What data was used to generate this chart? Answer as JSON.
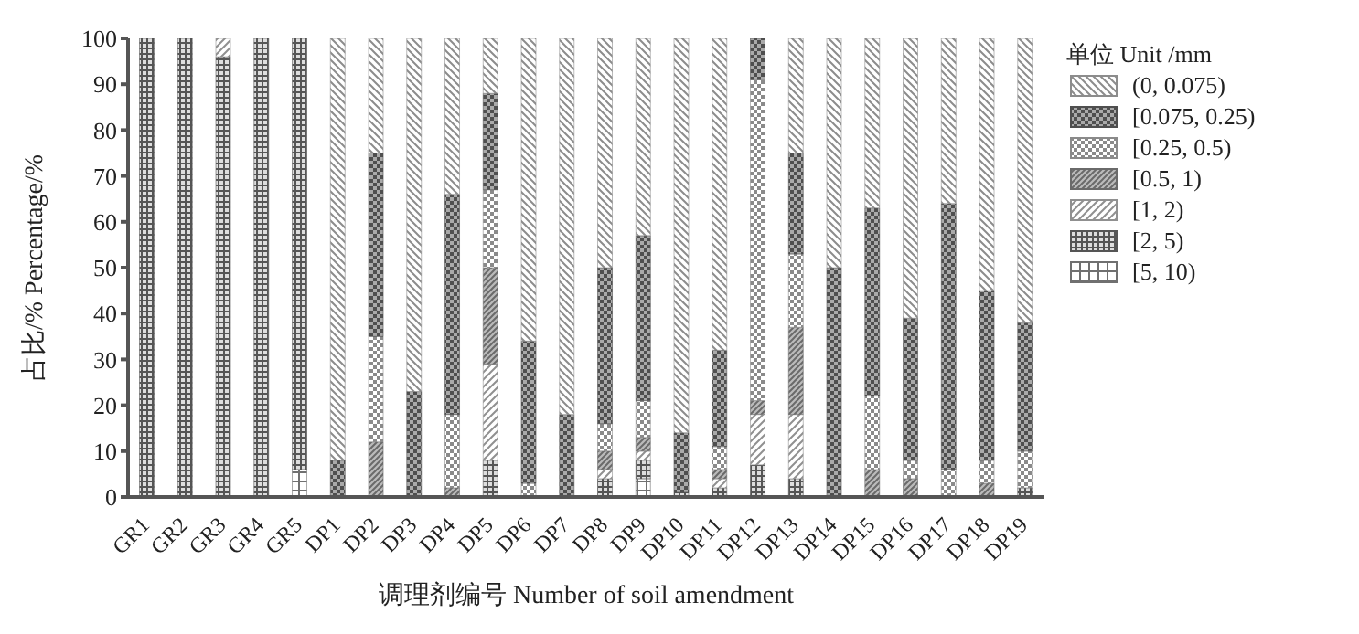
{
  "chart_data": {
    "type": "bar",
    "stacked": true,
    "xlabel": "调理剂编号 Number of soil amendment",
    "ylabel": "占比/% Percentage/%",
    "legend_title": "单位 Unit /mm",
    "legend": "top right",
    "grid": false,
    "categories": [
      "GR1",
      "GR2",
      "GR3",
      "GR4",
      "GR5",
      "DP1",
      "DP2",
      "DP3",
      "DP4",
      "DP5",
      "DP6",
      "DP7",
      "DP8",
      "DP9",
      "DP10",
      "DP11",
      "DP12",
      "DP13",
      "DP14",
      "DP15",
      "DP16",
      "DP17",
      "DP18",
      "DP19"
    ],
    "ylim": [
      0,
      100
    ],
    "yticks": [
      0,
      10,
      20,
      30,
      40,
      50,
      60,
      70,
      80,
      90,
      100
    ],
    "series": [
      {
        "name": "[5, 10)",
        "color": "#707070",
        "values": [
          0,
          0,
          0,
          0,
          6,
          0,
          0,
          0,
          0,
          0,
          0,
          0,
          0,
          4,
          0,
          0,
          0,
          0,
          0,
          0,
          0,
          0,
          0,
          0
        ]
      },
      {
        "name": "[2, 5)",
        "color": "#555555",
        "values": [
          100,
          100,
          96,
          100,
          94,
          0,
          0,
          0,
          0,
          8,
          0,
          0,
          4,
          4,
          1,
          2,
          7,
          4,
          0,
          0,
          0,
          0,
          0,
          2
        ]
      },
      {
        "name": "[1, 2)",
        "color": "#909090",
        "values": [
          0,
          0,
          4,
          0,
          0,
          0,
          0,
          0,
          0,
          21,
          0,
          0,
          2,
          2,
          0,
          2,
          11,
          14,
          0,
          0,
          0,
          0,
          0,
          0
        ]
      },
      {
        "name": "[0.5, 1)",
        "color": "#6a6a6a",
        "values": [
          0,
          0,
          0,
          0,
          0,
          0,
          12,
          0,
          2,
          21,
          0,
          0,
          4,
          3,
          0,
          2,
          3,
          19,
          0,
          6,
          4,
          0,
          3,
          0
        ]
      },
      {
        "name": "[0.25, 0.5)",
        "color": "#8a8a8a",
        "values": [
          0,
          0,
          0,
          0,
          0,
          0,
          23,
          0,
          16,
          17,
          3,
          0,
          6,
          8,
          0,
          5,
          70,
          16,
          0,
          16,
          4,
          6,
          5,
          8
        ]
      },
      {
        "name": "[0.075, 0.25)",
        "color": "#4f4f4f",
        "values": [
          0,
          0,
          0,
          0,
          0,
          8,
          40,
          23,
          48,
          21,
          31,
          18,
          34,
          36,
          13,
          21,
          9,
          22,
          50,
          41,
          31,
          58,
          37,
          28
        ]
      },
      {
        "name": "(0, 0.075)",
        "color": "#8c8c8c",
        "values": [
          0,
          0,
          0,
          0,
          0,
          92,
          25,
          77,
          34,
          12,
          66,
          82,
          50,
          43,
          86,
          68,
          0,
          25,
          50,
          37,
          61,
          36,
          55,
          62
        ]
      }
    ]
  }
}
